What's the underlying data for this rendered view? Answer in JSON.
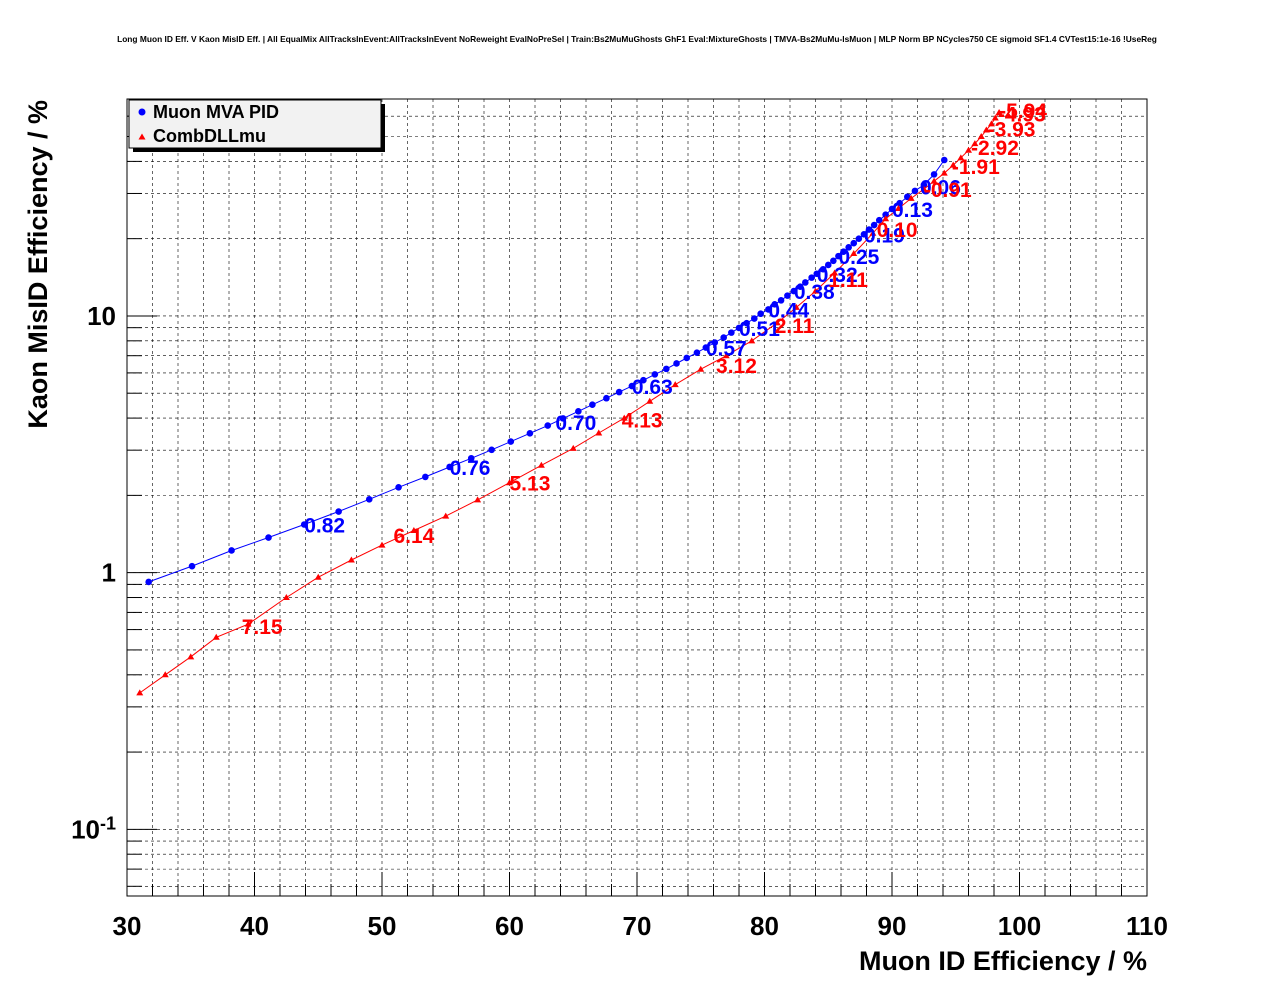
{
  "chart_data": {
    "type": "scatter",
    "title": "Long Muon ID Eff. V Kaon MisID Eff. | All EqualMix AllTracksInEvent:AllTracksInEvent NoReweight EvalNoPreSel | Train:Bs2MuMuGhosts GhF1 Eval:MixtureGhosts | TMVA-Bs2MuMu-IsMuon | MLP Norm BP NCycles750 CE sigmoid SF1.4 CVTest15:1e-16 !UseReg",
    "xlabel": "Muon ID Efficiency / %",
    "ylabel": "Kaon MisID Efficiency / %",
    "xlim": [
      30,
      110
    ],
    "ylim": [
      0.055,
      70
    ],
    "yscale": "log",
    "grid": true,
    "legend_position": "top-left",
    "x_ticks": [
      "30",
      "40",
      "50",
      "60",
      "70",
      "80",
      "90",
      "100",
      "110"
    ],
    "y_ticks": [
      {
        "value": 0.1,
        "base": "10",
        "exp": "-1"
      },
      {
        "value": 1,
        "base": "1",
        "exp": ""
      },
      {
        "value": 10,
        "base": "10",
        "exp": ""
      }
    ],
    "series": [
      {
        "name": "Muon MVA PID",
        "color": "#0000ff",
        "marker": "circle",
        "points": [
          [
            31.7,
            0.92
          ],
          [
            35.1,
            1.06
          ],
          [
            38.2,
            1.22
          ],
          [
            41.1,
            1.37
          ],
          [
            43.9,
            1.54
          ],
          [
            46.6,
            1.73
          ],
          [
            49.0,
            1.93
          ],
          [
            51.3,
            2.15
          ],
          [
            53.4,
            2.36
          ],
          [
            55.3,
            2.58
          ],
          [
            57.0,
            2.79
          ],
          [
            58.6,
            3.01
          ],
          [
            60.1,
            3.24
          ],
          [
            61.6,
            3.49
          ],
          [
            63.0,
            3.74
          ],
          [
            64.2,
            3.99
          ],
          [
            65.4,
            4.25
          ],
          [
            66.5,
            4.51
          ],
          [
            67.6,
            4.78
          ],
          [
            68.6,
            5.05
          ],
          [
            69.6,
            5.33
          ],
          [
            70.5,
            5.62
          ],
          [
            71.4,
            5.92
          ],
          [
            72.3,
            6.22
          ],
          [
            73.1,
            6.53
          ],
          [
            73.9,
            6.86
          ],
          [
            74.7,
            7.19
          ],
          [
            75.4,
            7.53
          ],
          [
            76.1,
            7.88
          ],
          [
            76.8,
            8.24
          ],
          [
            77.4,
            8.61
          ],
          [
            78.0,
            8.98
          ],
          [
            78.6,
            9.37
          ],
          [
            79.2,
            9.77
          ],
          [
            79.7,
            10.2
          ],
          [
            80.3,
            10.6
          ],
          [
            80.8,
            11.1
          ],
          [
            81.3,
            11.5
          ],
          [
            81.8,
            12.0
          ],
          [
            82.3,
            12.5
          ],
          [
            82.8,
            13.0
          ],
          [
            83.2,
            13.5
          ],
          [
            83.7,
            14.1
          ],
          [
            84.1,
            14.6
          ],
          [
            84.6,
            15.2
          ],
          [
            85.0,
            15.8
          ],
          [
            85.4,
            16.4
          ],
          [
            85.8,
            17.1
          ],
          [
            86.2,
            17.8
          ],
          [
            86.6,
            18.5
          ],
          [
            87.0,
            19.2
          ],
          [
            87.4,
            20.0
          ],
          [
            87.8,
            20.8
          ],
          [
            88.2,
            21.7
          ],
          [
            88.6,
            22.6
          ],
          [
            89.0,
            23.6
          ],
          [
            89.5,
            24.8
          ],
          [
            90.0,
            26.1
          ],
          [
            90.6,
            27.5
          ],
          [
            91.2,
            29.1
          ],
          [
            91.8,
            30.7
          ],
          [
            92.5,
            32.4
          ],
          [
            93.3,
            35.6
          ],
          [
            94.1,
            40.5
          ]
        ],
        "labels": [
          {
            "text": "0.82",
            "x": 43.9,
            "y": 1.54
          },
          {
            "text": "0.76",
            "x": 55.3,
            "y": 2.58
          },
          {
            "text": "0.70",
            "x": 63.6,
            "y": 3.86
          },
          {
            "text": "0.63",
            "x": 69.6,
            "y": 5.33
          },
          {
            "text": "0.57",
            "x": 75.4,
            "y": 7.53
          },
          {
            "text": "0.51",
            "x": 78.0,
            "y": 8.98
          },
          {
            "text": "0.44",
            "x": 80.3,
            "y": 10.6
          },
          {
            "text": "0.38",
            "x": 82.3,
            "y": 12.5
          },
          {
            "text": "0.32",
            "x": 84.1,
            "y": 14.6
          },
          {
            "text": "0.25",
            "x": 85.8,
            "y": 17.1
          },
          {
            "text": "0.19",
            "x": 87.8,
            "y": 20.8
          },
          {
            "text": "0.13",
            "x": 90.0,
            "y": 26.1
          },
          {
            "text": "0.06",
            "x": 92.2,
            "y": 32.0
          }
        ]
      },
      {
        "name": "CombDLLmu",
        "color": "#ff0000",
        "marker": "triangle",
        "points": [
          [
            31.0,
            0.34
          ],
          [
            33.0,
            0.4
          ],
          [
            35.0,
            0.47
          ],
          [
            37.0,
            0.56
          ],
          [
            39.5,
            0.63
          ],
          [
            42.5,
            0.8
          ],
          [
            45.0,
            0.96
          ],
          [
            47.6,
            1.12
          ],
          [
            50.0,
            1.28
          ],
          [
            52.5,
            1.46
          ],
          [
            55.0,
            1.66
          ],
          [
            57.5,
            1.92
          ],
          [
            60.0,
            2.24
          ],
          [
            62.5,
            2.62
          ],
          [
            65.0,
            3.05
          ],
          [
            67.0,
            3.5
          ],
          [
            69.0,
            4.0
          ],
          [
            71.0,
            4.65
          ],
          [
            73.0,
            5.4
          ],
          [
            75.0,
            6.2
          ],
          [
            77.0,
            7.0
          ],
          [
            79.0,
            8.0
          ],
          [
            81.0,
            9.4
          ],
          [
            82.5,
            10.8
          ],
          [
            84.0,
            12.5
          ],
          [
            85.5,
            14.7
          ],
          [
            87.0,
            17.5
          ],
          [
            88.5,
            21.0
          ],
          [
            89.5,
            23.9
          ],
          [
            90.5,
            26.2
          ],
          [
            91.5,
            28.7
          ],
          [
            92.5,
            31.2
          ],
          [
            93.3,
            33.5
          ],
          [
            94.1,
            36.0
          ],
          [
            94.8,
            38.7
          ],
          [
            95.4,
            41.3
          ],
          [
            96.0,
            44.2
          ],
          [
            96.5,
            46.9
          ],
          [
            97.0,
            50.0
          ],
          [
            97.4,
            53.0
          ],
          [
            97.8,
            56.0
          ],
          [
            98.1,
            59.0
          ],
          [
            98.4,
            62.0
          ]
        ],
        "labels": [
          {
            "text": "7.15",
            "x": 39.0,
            "y": 0.62
          },
          {
            "text": "6.14",
            "x": 50.9,
            "y": 1.4
          },
          {
            "text": "5.13",
            "x": 60.0,
            "y": 2.24
          },
          {
            "text": "4.13",
            "x": 68.8,
            "y": 3.95
          },
          {
            "text": "3.12",
            "x": 76.2,
            "y": 6.45
          },
          {
            "text": "2.11",
            "x": 80.8,
            "y": 9.2
          },
          {
            "text": "1.11",
            "x": 85.0,
            "y": 13.9
          },
          {
            "text": "0.10",
            "x": 88.8,
            "y": 21.8
          },
          {
            "text": "0.91",
            "x": 92.5,
            "y": 31.2
          },
          {
            "text": "1.91",
            "x": 94.7,
            "y": 38.3
          },
          {
            "text": "2.92",
            "x": 96.2,
            "y": 45.5
          },
          {
            "text": "3.93",
            "x": 97.5,
            "y": 53.8
          },
          {
            "text": "4.93",
            "x": 98.3,
            "y": 61.5
          },
          {
            "text": "5.94",
            "x": 98.4,
            "y": 63.5
          }
        ],
        "label_prefix_negative_from": "0.91"
      }
    ]
  }
}
